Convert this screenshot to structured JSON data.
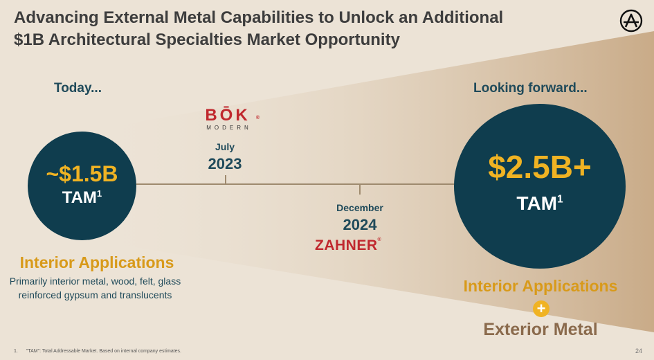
{
  "title": {
    "line1": "Advancing External Metal Capabilities to Unlock an Additional",
    "line2": "$1B Architectural Specialties Market Opportunity"
  },
  "colors": {
    "navy": "#0f3d4e",
    "teal_text": "#1f4a5a",
    "gold": "#f0b323",
    "orange_heading": "#d89a1a",
    "brand_red": "#c0282e",
    "background": "#ece3d6"
  },
  "today": {
    "heading": "Today...",
    "tam_value": "~$1.5B",
    "tam_label": "TAM",
    "tam_footnote": "1",
    "app_title": "Interior Applications",
    "app_desc_line1": "Primarily interior metal, wood, felt, glass",
    "app_desc_line2": "reinforced gypsum and translucents"
  },
  "forward": {
    "heading": "Looking forward...",
    "tam_value": "$2.5B+",
    "tam_label": "TAM",
    "tam_footnote": "1",
    "app_title": "Interior Applications",
    "plus": "+",
    "exterior": "Exterior Metal"
  },
  "timeline": {
    "event1": {
      "brand": "BŌK",
      "brand_reg": "®",
      "brand_sub": "MODERN",
      "month": "July",
      "year": "2023"
    },
    "event2": {
      "month": "December",
      "year": "2024",
      "brand": "ZAHNER",
      "brand_reg": "®"
    }
  },
  "footnote": {
    "number": "1.",
    "text": "\"TAM\": Total Addressable Market. Based on internal company estimates."
  },
  "page_number": "24",
  "logo": {
    "icon": "armstrong-a-icon"
  }
}
